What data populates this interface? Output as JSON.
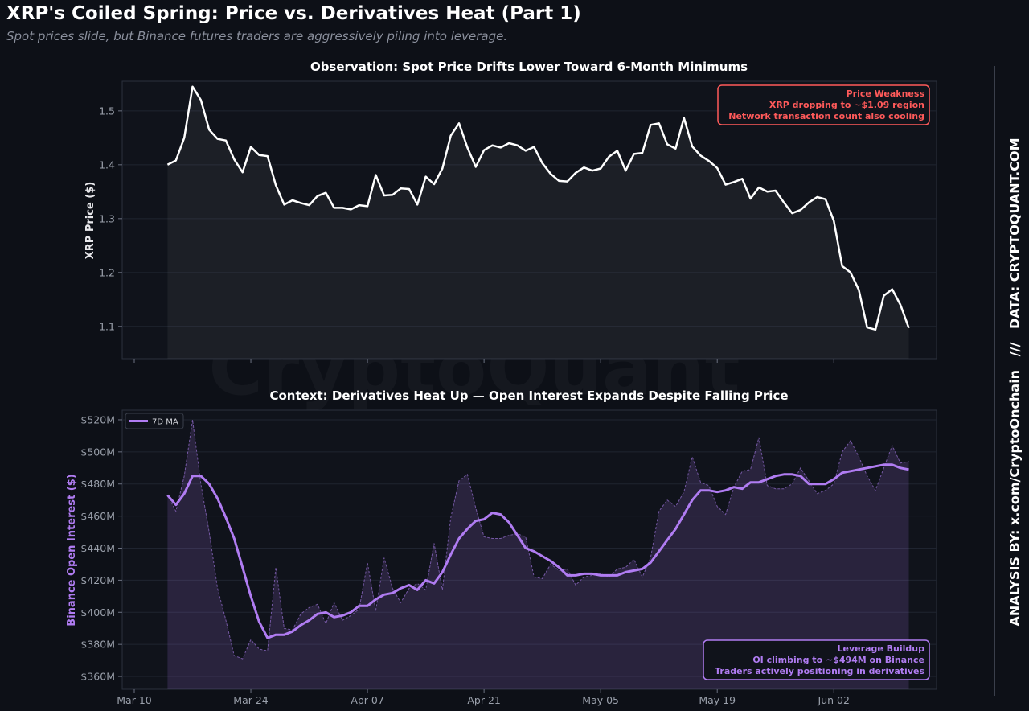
{
  "header": {
    "title": "XRP's Coiled Spring: Price vs. Derivatives Heat (Part 1)",
    "subtitle": "Spot prices slide, but Binance futures traders are aggressively piling into leverage."
  },
  "side_credit": {
    "analysis": "ANALYSIS BY: x.com/CryptoOnchain",
    "separator": "///",
    "data": "DATA: CRYPTOQUANT.COM"
  },
  "watermark": "CryptoQuant",
  "colors": {
    "price_line": "#ffffff",
    "oi_line": "#b07cf2",
    "price_annotation": "#ff5a5a",
    "oi_annotation": "#b07cf2",
    "background": "#0d1017"
  },
  "chart_data": [
    {
      "type": "line",
      "title": "Observation: Spot Price Drifts Lower Toward 6-Month Minimums",
      "ylabel": "XRP Price ($)",
      "xlabel": "",
      "ylim": [
        1.04,
        1.555
      ],
      "yticks": [
        1.1,
        1.2,
        1.3,
        1.4,
        1.5
      ],
      "grid": true,
      "fill_under": true,
      "start_date": "2025-03-14",
      "x_tick_labels": [
        {
          "date": "2025-03-10",
          "label": "Mar 10"
        },
        {
          "date": "2025-03-24",
          "label": "Mar 24"
        },
        {
          "date": "2025-04-07",
          "label": "Apr 07"
        },
        {
          "date": "2025-04-21",
          "label": "Apr 21"
        },
        {
          "date": "2025-05-05",
          "label": "May 05"
        },
        {
          "date": "2025-05-19",
          "label": "May 19"
        },
        {
          "date": "2025-06-02",
          "label": "Jun 02"
        }
      ],
      "series": [
        {
          "name": "",
          "values": [
            1.4,
            1.408,
            1.45,
            1.545,
            1.52,
            1.465,
            1.448,
            1.445,
            1.41,
            1.386,
            1.433,
            1.418,
            1.416,
            1.362,
            1.326,
            1.334,
            1.329,
            1.325,
            1.342,
            1.348,
            1.32,
            1.32,
            1.317,
            1.325,
            1.323,
            1.381,
            1.343,
            1.344,
            1.356,
            1.355,
            1.326,
            1.378,
            1.364,
            1.393,
            1.454,
            1.477,
            1.432,
            1.396,
            1.427,
            1.436,
            1.432,
            1.44,
            1.436,
            1.426,
            1.433,
            1.403,
            1.383,
            1.37,
            1.369,
            1.385,
            1.395,
            1.389,
            1.393,
            1.415,
            1.426,
            1.389,
            1.42,
            1.422,
            1.474,
            1.477,
            1.438,
            1.43,
            1.487,
            1.434,
            1.417,
            1.407,
            1.394,
            1.363,
            1.368,
            1.374,
            1.337,
            1.358,
            1.35,
            1.352,
            1.33,
            1.31,
            1.316,
            1.33,
            1.34,
            1.336,
            1.296,
            1.212,
            1.2,
            1.168,
            1.098,
            1.094,
            1.157,
            1.169,
            1.14,
            1.097
          ]
        }
      ],
      "annotation": {
        "lines": [
          "Price Weakness",
          "XRP dropping to ~$1.09 region",
          "Network transaction count also cooling"
        ],
        "position": "top-right"
      }
    },
    {
      "type": "area",
      "title": "Context: Derivatives Heat Up — Open Interest Expands Despite Falling Price",
      "ylabel": "Binance Open Interest ($)",
      "xlabel": "",
      "ylim": [
        352,
        526
      ],
      "yticks": [
        360,
        380,
        400,
        420,
        440,
        460,
        480,
        500,
        520
      ],
      "ytick_labels": [
        "$360M",
        "$380M",
        "$400M",
        "$420M",
        "$440M",
        "$460M",
        "$480M",
        "$500M",
        "$520M"
      ],
      "grid": true,
      "start_date": "2025-03-14",
      "x_tick_labels": [
        {
          "date": "2025-03-10",
          "label": "Mar 10"
        },
        {
          "date": "2025-03-24",
          "label": "Mar 24"
        },
        {
          "date": "2025-04-07",
          "label": "Apr 07"
        },
        {
          "date": "2025-04-21",
          "label": "Apr 21"
        },
        {
          "date": "2025-05-05",
          "label": "May 05"
        },
        {
          "date": "2025-05-19",
          "label": "May 19"
        },
        {
          "date": "2025-06-02",
          "label": "Jun 02"
        }
      ],
      "legend": {
        "placement": "top-left",
        "entries": [
          "7D MA"
        ]
      },
      "series": [
        {
          "name": "",
          "role": "raw",
          "values": [
            473,
            463,
            485,
            520,
            480,
            450,
            415,
            395,
            373,
            371,
            383,
            377,
            376,
            428,
            390,
            389,
            399,
            403,
            405,
            393,
            406,
            395,
            398,
            402,
            431,
            401,
            434,
            415,
            406,
            415,
            418,
            414,
            443,
            414,
            459,
            482,
            486,
            465,
            447,
            446,
            446,
            448,
            449,
            447,
            422,
            421,
            430,
            426,
            427,
            417,
            422,
            423,
            424,
            422,
            427,
            428,
            433,
            422,
            434,
            463,
            470,
            466,
            475,
            497,
            481,
            479,
            466,
            461,
            478,
            488,
            489,
            509,
            479,
            477,
            477,
            480,
            490,
            482,
            474,
            476,
            480,
            500,
            507,
            497,
            485,
            476,
            490,
            504,
            493,
            494
          ]
        },
        {
          "name": "7D MA",
          "role": "ma",
          "values": [
            473,
            467,
            474,
            485,
            485,
            480,
            471,
            459,
            446,
            428,
            410,
            394,
            384,
            386,
            386,
            388,
            392,
            395,
            399,
            400,
            397,
            398,
            400,
            404,
            404,
            408,
            411,
            412,
            415,
            417,
            414,
            420,
            418,
            425,
            436,
            446,
            452,
            457,
            458,
            462,
            461,
            456,
            448,
            440,
            438,
            435,
            432,
            428,
            423,
            423,
            424,
            424,
            423,
            423,
            423,
            425,
            426,
            427,
            431,
            438,
            445,
            452,
            461,
            470,
            476,
            476,
            475,
            476,
            478,
            477,
            481,
            481,
            483,
            485,
            486,
            486,
            485,
            480,
            480,
            480,
            483,
            487,
            488,
            489,
            490,
            491,
            492,
            492,
            490,
            489
          ]
        }
      ],
      "annotation": {
        "lines": [
          "Leverage Buildup",
          "OI climbing to ~$494M on Binance",
          "Traders actively positioning in derivatives"
        ],
        "position": "bottom-right"
      }
    }
  ]
}
